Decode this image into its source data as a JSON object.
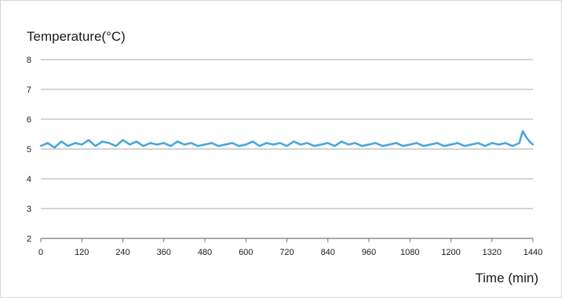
{
  "chart_data": {
    "type": "line",
    "title": "",
    "ylabel": "Temperature(°C)",
    "xlabel": "Time (min)",
    "xlim": [
      0,
      1440
    ],
    "ylim": [
      2,
      8
    ],
    "x_ticks": [
      0,
      120,
      240,
      360,
      480,
      600,
      720,
      840,
      960,
      1080,
      1200,
      1320,
      1440
    ],
    "y_ticks": [
      2,
      3,
      4,
      5,
      6,
      7,
      8
    ],
    "grid": "horizontal",
    "legend": "none",
    "series": [
      {
        "color": "#4aa8d8",
        "x": [
          0,
          20,
          40,
          60,
          80,
          100,
          120,
          140,
          160,
          180,
          200,
          220,
          240,
          260,
          280,
          300,
          320,
          340,
          360,
          380,
          400,
          420,
          440,
          460,
          480,
          500,
          520,
          540,
          560,
          580,
          600,
          620,
          640,
          660,
          680,
          700,
          720,
          740,
          760,
          780,
          800,
          820,
          840,
          860,
          880,
          900,
          920,
          940,
          960,
          980,
          1000,
          1020,
          1040,
          1060,
          1080,
          1100,
          1120,
          1140,
          1160,
          1180,
          1200,
          1220,
          1240,
          1260,
          1280,
          1300,
          1320,
          1340,
          1360,
          1380,
          1400,
          1410,
          1420,
          1430,
          1440
        ],
        "y": [
          5.1,
          5.2,
          5.05,
          5.25,
          5.1,
          5.2,
          5.15,
          5.3,
          5.1,
          5.25,
          5.2,
          5.1,
          5.3,
          5.15,
          5.25,
          5.1,
          5.2,
          5.15,
          5.2,
          5.1,
          5.25,
          5.15,
          5.2,
          5.1,
          5.15,
          5.2,
          5.1,
          5.15,
          5.2,
          5.1,
          5.15,
          5.25,
          5.1,
          5.2,
          5.15,
          5.2,
          5.1,
          5.25,
          5.15,
          5.2,
          5.1,
          5.15,
          5.2,
          5.1,
          5.25,
          5.15,
          5.2,
          5.1,
          5.15,
          5.2,
          5.1,
          5.15,
          5.2,
          5.1,
          5.15,
          5.2,
          5.1,
          5.15,
          5.2,
          5.1,
          5.15,
          5.2,
          5.1,
          5.15,
          5.2,
          5.1,
          5.2,
          5.15,
          5.2,
          5.1,
          5.2,
          5.6,
          5.4,
          5.25,
          5.15
        ]
      }
    ]
  }
}
